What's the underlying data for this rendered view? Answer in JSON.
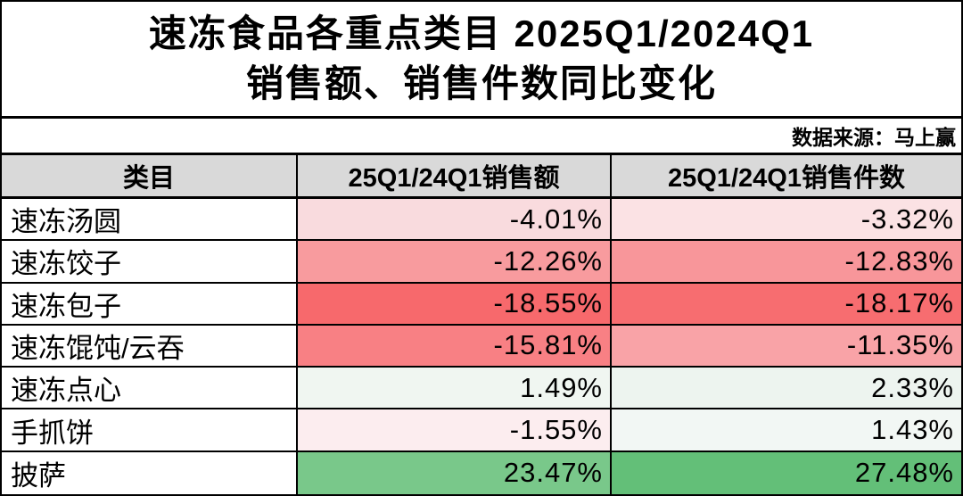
{
  "title": {
    "line1": "速冻食品各重点类目 2025Q1/2024Q1",
    "line2": "销售额、销售件数同比变化"
  },
  "source": "数据来源：马上赢",
  "table": {
    "headers": [
      "类目",
      "25Q1/24Q1销售额",
      "25Q1/24Q1销售件数"
    ],
    "header_bg": "#D9D9D9",
    "rows": [
      {
        "category": "速冻汤圆",
        "sales": "-4.01%",
        "volume": "-3.32%",
        "sales_color": "#F9DBDE",
        "volume_color": "#FBE2E4"
      },
      {
        "category": "速冻饺子",
        "sales": "-12.26%",
        "volume": "-12.83%",
        "sales_color": "#F89B9E",
        "volume_color": "#F8969A"
      },
      {
        "category": "速冻包子",
        "sales": "-18.55%",
        "volume": "-18.17%",
        "sales_color": "#F7696C",
        "volume_color": "#F76D70"
      },
      {
        "category": "速冻馄饨/云吞",
        "sales": "-15.81%",
        "volume": "-11.35%",
        "sales_color": "#F88084",
        "volume_color": "#F9A3A7"
      },
      {
        "category": "速冻点心",
        "sales": "1.49%",
        "volume": "2.33%",
        "sales_color": "#F0F6F1",
        "volume_color": "#EDF4EF"
      },
      {
        "category": "手抓饼",
        "sales": "-1.55%",
        "volume": "1.43%",
        "sales_color": "#FCEDEF",
        "volume_color": "#F2F7F4"
      },
      {
        "category": "披萨",
        "sales": "23.47%",
        "volume": "27.48%",
        "sales_color": "#79C88A",
        "volume_color": "#63BF78"
      }
    ]
  },
  "chart_data": {
    "type": "table",
    "title": "速冻食品各重点类目 2025Q1/2024Q1 销售额、销售件数同比变化",
    "source": "数据来源：马上赢",
    "categories": [
      "速冻汤圆",
      "速冻饺子",
      "速冻包子",
      "速冻馄饨/云吞",
      "速冻点心",
      "手抓饼",
      "披萨"
    ],
    "series": [
      {
        "name": "25Q1/24Q1销售额",
        "unit": "%",
        "values": [
          -4.01,
          -12.26,
          -18.55,
          -15.81,
          1.49,
          -1.55,
          23.47
        ]
      },
      {
        "name": "25Q1/24Q1销售件数",
        "unit": "%",
        "values": [
          -3.32,
          -12.83,
          -18.17,
          -11.35,
          2.33,
          1.43,
          27.48
        ]
      }
    ],
    "conditional_formatting": {
      "style": "red-white-green 3-color scale",
      "negative_color": "#F7696C",
      "midpoint_color": "#FFFFFF",
      "positive_color": "#63BF78"
    }
  }
}
